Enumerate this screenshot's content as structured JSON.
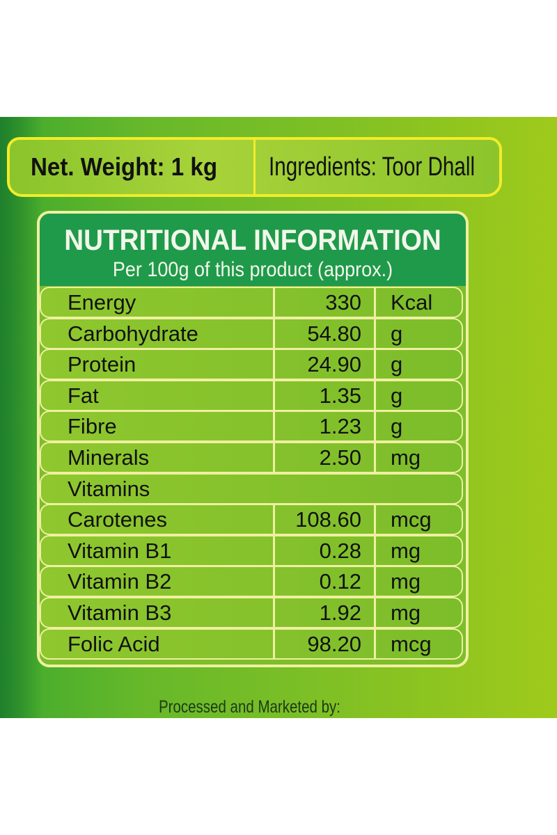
{
  "top": {
    "net_weight": "Net. Weight: 1 kg",
    "ingredients": "Ingredients: Toor Dhall"
  },
  "nutrition": {
    "title": "NUTRITIONAL INFORMATION",
    "subtitle": "Per 100g of this product (approx.)",
    "rows": [
      {
        "name": "Energy",
        "value": "330",
        "unit": "Kcal"
      },
      {
        "name": "Carbohydrate",
        "value": "54.80",
        "unit": "g"
      },
      {
        "name": "Protein",
        "value": "24.90",
        "unit": "g"
      },
      {
        "name": "Fat",
        "value": "1.35",
        "unit": "g"
      },
      {
        "name": "Fibre",
        "value": "1.23",
        "unit": "g"
      },
      {
        "name": "Minerals",
        "value": "2.50",
        "unit": "mg"
      },
      {
        "name": "Vitamins",
        "section": true
      },
      {
        "name": "Carotenes",
        "value": "108.60",
        "unit": "mcg"
      },
      {
        "name": "Vitamin B1",
        "value": "0.28",
        "unit": "mg"
      },
      {
        "name": "Vitamin B2",
        "value": "0.12",
        "unit": "mg"
      },
      {
        "name": "Vitamin B3",
        "value": "1.92",
        "unit": "mg"
      },
      {
        "name": "Folic Acid",
        "value": "98.20",
        "unit": "mcg"
      }
    ]
  },
  "footer": "Processed and Marketed by:",
  "colors": {
    "header_green": "#1f9a4a",
    "border_yellow": "#f2ec2a",
    "row_border": "#eef0a0"
  }
}
